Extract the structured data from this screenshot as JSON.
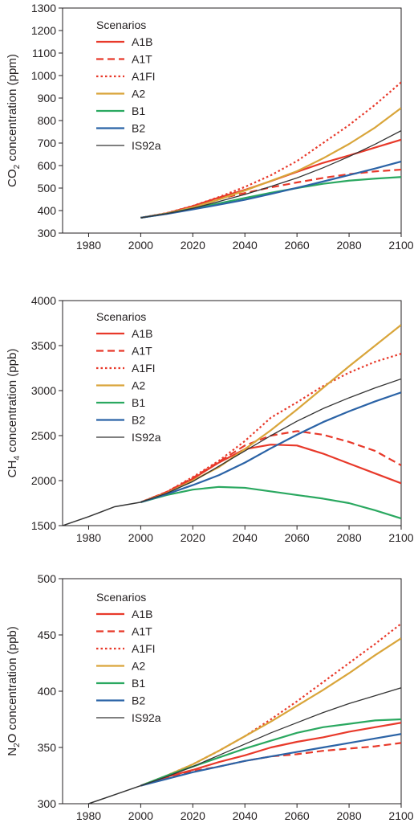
{
  "colors": {
    "A1B": "#e8392a",
    "A1T": "#e8392a",
    "A1FI": "#e8392a",
    "A2": "#d9a53a",
    "B1": "#2aa860",
    "B2": "#2b63a6",
    "IS92a": "#333333"
  },
  "chart_data": [
    {
      "type": "line",
      "ylabel": "CO2 concentration (ppm)",
      "ylabel_main": "CO",
      "ylabel_sub": "2",
      "ylabel_rest": " concentration (ppm)",
      "xlabel": "",
      "xlim": [
        1970,
        2100
      ],
      "ylim": [
        300,
        1300
      ],
      "xticks": [
        1980,
        2000,
        2020,
        2040,
        2060,
        2080,
        2100
      ],
      "yticks": [
        300,
        400,
        500,
        600,
        700,
        800,
        900,
        1000,
        1100,
        1200,
        1300
      ],
      "legend_title": "Scenarios",
      "legend_position": "top-left",
      "series": [
        {
          "name": "A1B",
          "style": "solid",
          "x": [
            2000,
            2010,
            2020,
            2030,
            2040,
            2050,
            2060,
            2070,
            2080,
            2090,
            2100
          ],
          "values": [
            368,
            388,
            420,
            458,
            492,
            531,
            572,
            612,
            645,
            680,
            715
          ]
        },
        {
          "name": "A1T",
          "style": "dashed",
          "x": [
            2000,
            2010,
            2020,
            2030,
            2040,
            2050,
            2060,
            2070,
            2080,
            2090,
            2100
          ],
          "values": [
            368,
            388,
            418,
            452,
            478,
            503,
            525,
            545,
            562,
            574,
            582
          ]
        },
        {
          "name": "A1FI",
          "style": "dotted",
          "x": [
            2000,
            2010,
            2020,
            2030,
            2040,
            2050,
            2060,
            2070,
            2080,
            2090,
            2100
          ],
          "values": [
            368,
            389,
            421,
            460,
            505,
            557,
            620,
            700,
            780,
            870,
            970
          ]
        },
        {
          "name": "A2",
          "style": "solid",
          "x": [
            2000,
            2010,
            2020,
            2030,
            2040,
            2050,
            2060,
            2070,
            2080,
            2090,
            2100
          ],
          "values": [
            368,
            387,
            414,
            449,
            489,
            532,
            575,
            632,
            696,
            769,
            856
          ]
        },
        {
          "name": "B1",
          "style": "solid",
          "x": [
            2000,
            2010,
            2020,
            2030,
            2040,
            2050,
            2060,
            2070,
            2080,
            2090,
            2100
          ],
          "values": [
            368,
            386,
            409,
            432,
            456,
            479,
            500,
            519,
            533,
            542,
            549
          ]
        },
        {
          "name": "B2",
          "style": "solid",
          "x": [
            2000,
            2010,
            2020,
            2030,
            2040,
            2050,
            2060,
            2070,
            2080,
            2090,
            2100
          ],
          "values": [
            368,
            385,
            405,
            426,
            448,
            474,
            501,
            529,
            558,
            587,
            618
          ]
        },
        {
          "name": "IS92a",
          "style": "thin",
          "x": [
            2000,
            2010,
            2020,
            2030,
            2040,
            2050,
            2060,
            2070,
            2080,
            2090,
            2100
          ],
          "values": [
            368,
            386,
            410,
            440,
            472,
            507,
            545,
            590,
            640,
            695,
            755
          ]
        }
      ]
    },
    {
      "type": "line",
      "ylabel": "CH4 concentration (ppb)",
      "ylabel_main": "CH",
      "ylabel_sub": "4",
      "ylabel_rest": " concentration (ppb)",
      "xlabel": "",
      "xlim": [
        1970,
        2100
      ],
      "ylim": [
        1500,
        4000
      ],
      "xticks": [
        1980,
        2000,
        2020,
        2040,
        2060,
        2080,
        2100
      ],
      "yticks": [
        1500,
        2000,
        2500,
        3000,
        3500,
        4000
      ],
      "legend_title": "Scenarios",
      "legend_position": "top-left",
      "historical": {
        "x": [
          1970,
          1980,
          1990,
          2000
        ],
        "values": [
          1500,
          1600,
          1710,
          1760
        ]
      },
      "series": [
        {
          "name": "A1B",
          "style": "solid",
          "x": [
            2000,
            2010,
            2020,
            2030,
            2040,
            2050,
            2060,
            2070,
            2080,
            2090,
            2100
          ],
          "values": [
            1760,
            1870,
            2020,
            2200,
            2350,
            2400,
            2390,
            2300,
            2190,
            2080,
            1970
          ]
        },
        {
          "name": "A1T",
          "style": "dashed",
          "x": [
            2000,
            2010,
            2020,
            2030,
            2040,
            2050,
            2060,
            2070,
            2080,
            2090,
            2100
          ],
          "values": [
            1760,
            1875,
            2030,
            2210,
            2390,
            2500,
            2550,
            2510,
            2430,
            2330,
            2170
          ]
        },
        {
          "name": "A1FI",
          "style": "dotted",
          "x": [
            2000,
            2010,
            2020,
            2030,
            2040,
            2050,
            2060,
            2070,
            2080,
            2090,
            2100
          ],
          "values": [
            1760,
            1875,
            2040,
            2220,
            2440,
            2700,
            2870,
            3050,
            3200,
            3320,
            3410
          ]
        },
        {
          "name": "A2",
          "style": "solid",
          "x": [
            2000,
            2010,
            2020,
            2030,
            2040,
            2050,
            2060,
            2070,
            2080,
            2090,
            2100
          ],
          "values": [
            1760,
            1860,
            2000,
            2150,
            2350,
            2560,
            2790,
            3030,
            3270,
            3500,
            3730
          ]
        },
        {
          "name": "B1",
          "style": "solid",
          "x": [
            2000,
            2010,
            2020,
            2030,
            2040,
            2050,
            2060,
            2070,
            2080,
            2090,
            2100
          ],
          "values": [
            1760,
            1840,
            1900,
            1930,
            1920,
            1880,
            1840,
            1800,
            1750,
            1670,
            1580
          ]
        },
        {
          "name": "B2",
          "style": "solid",
          "x": [
            2000,
            2010,
            2020,
            2030,
            2040,
            2050,
            2060,
            2070,
            2080,
            2090,
            2100
          ],
          "values": [
            1760,
            1850,
            1950,
            2060,
            2200,
            2360,
            2510,
            2650,
            2770,
            2880,
            2980
          ]
        },
        {
          "name": "IS92a",
          "style": "thin",
          "x": [
            2000,
            2010,
            2020,
            2030,
            2040,
            2050,
            2060,
            2070,
            2080,
            2090,
            2100
          ],
          "values": [
            1760,
            1860,
            1990,
            2160,
            2330,
            2500,
            2660,
            2800,
            2920,
            3030,
            3130
          ]
        }
      ]
    },
    {
      "type": "line",
      "ylabel": "N2O concentration (ppb)",
      "ylabel_main": "N",
      "ylabel_sub": "2",
      "ylabel_rest": "O concentration (ppb)",
      "xlabel": "",
      "xlim": [
        1970,
        2100
      ],
      "ylim": [
        300,
        500
      ],
      "xticks": [
        1980,
        2000,
        2020,
        2040,
        2060,
        2080,
        2100
      ],
      "yticks": [
        300,
        350,
        400,
        450,
        500
      ],
      "legend_title": "Scenarios",
      "legend_position": "top-left",
      "historical": {
        "x": [
          1980,
          1990,
          2000
        ],
        "values": [
          300,
          308,
          316
        ]
      },
      "series": [
        {
          "name": "A1B",
          "style": "solid",
          "x": [
            2000,
            2010,
            2020,
            2030,
            2040,
            2050,
            2060,
            2070,
            2080,
            2090,
            2100
          ],
          "values": [
            316,
            324,
            330,
            337,
            343,
            350,
            355,
            359,
            364,
            368,
            372
          ]
        },
        {
          "name": "A1T",
          "style": "dashed",
          "x": [
            2000,
            2010,
            2020,
            2030,
            2040,
            2050,
            2060,
            2070,
            2080,
            2090,
            2100
          ],
          "values": [
            316,
            323,
            329,
            333,
            338,
            342,
            344,
            347,
            349,
            351,
            354
          ]
        },
        {
          "name": "A1FI",
          "style": "dotted",
          "x": [
            2000,
            2010,
            2020,
            2030,
            2040,
            2050,
            2060,
            2070,
            2080,
            2090,
            2100
          ],
          "values": [
            316,
            325,
            335,
            347,
            360,
            375,
            391,
            408,
            425,
            442,
            460
          ]
        },
        {
          "name": "A2",
          "style": "solid",
          "x": [
            2000,
            2010,
            2020,
            2030,
            2040,
            2050,
            2060,
            2070,
            2080,
            2090,
            2100
          ],
          "values": [
            316,
            325,
            335,
            347,
            360,
            373,
            387,
            401,
            416,
            432,
            447
          ]
        },
        {
          "name": "B1",
          "style": "solid",
          "x": [
            2000,
            2010,
            2020,
            2030,
            2040,
            2050,
            2060,
            2070,
            2080,
            2090,
            2100
          ],
          "values": [
            316,
            325,
            333,
            341,
            349,
            356,
            363,
            368,
            371,
            374,
            375
          ]
        },
        {
          "name": "B2",
          "style": "solid",
          "x": [
            2000,
            2010,
            2020,
            2030,
            2040,
            2050,
            2060,
            2070,
            2080,
            2090,
            2100
          ],
          "values": [
            316,
            322,
            328,
            333,
            338,
            342,
            346,
            350,
            354,
            358,
            362
          ]
        },
        {
          "name": "IS92a",
          "style": "thin",
          "x": [
            2000,
            2010,
            2020,
            2030,
            2040,
            2050,
            2060,
            2070,
            2080,
            2090,
            2100
          ],
          "values": [
            316,
            324,
            333,
            343,
            353,
            363,
            372,
            381,
            389,
            396,
            403
          ]
        }
      ]
    }
  ]
}
